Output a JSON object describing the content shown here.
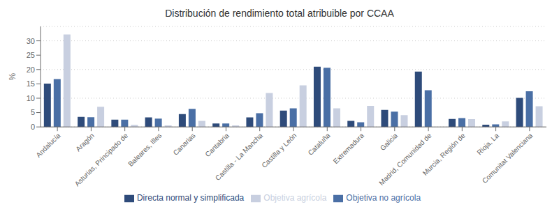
{
  "chart_data": {
    "type": "bar",
    "title": "Distribución de rendimiento total atribuible por CCAA",
    "categories": [
      "Andalucía",
      "Aragón",
      "Asturias, Principado de",
      "Baleares, Illes",
      "Canarias",
      "Cantabria",
      "Castilla - La Mancha",
      "Castilla y León",
      "Cataluña",
      "Extremadura",
      "Galicia",
      "Madrid, Comunidad de",
      "Murcia, Región de",
      "Rioja, La",
      "Comunitat Valenciana"
    ],
    "series": [
      {
        "name": "Directa normal y simplificada",
        "color": "#2E4B7A",
        "values": [
          15.1,
          3.5,
          2.5,
          3.3,
          4.5,
          1.2,
          3.3,
          5.7,
          21.0,
          2.1,
          5.9,
          19.3,
          2.8,
          0.8,
          10.1
        ]
      },
      {
        "name": "Objetiva no agrícola",
        "color": "#4A6FA5",
        "values": [
          16.7,
          3.4,
          2.5,
          2.9,
          6.3,
          1.2,
          4.8,
          6.5,
          20.6,
          1.6,
          5.3,
          12.8,
          3.1,
          0.9,
          12.4
        ]
      },
      {
        "name": "Objetiva agrícola",
        "color": "#C8CFE0",
        "values": [
          32.2,
          7.0,
          0.7,
          0.5,
          2.1,
          0.5,
          11.8,
          14.5,
          6.5,
          7.3,
          4.1,
          0.0,
          2.7,
          1.9,
          7.2
        ]
      }
    ],
    "ylabel": "%",
    "ylim": [
      0,
      35
    ],
    "yticks": [
      0,
      5,
      10,
      15,
      20,
      25,
      30
    ],
    "grid": true,
    "legend": "bottom"
  }
}
